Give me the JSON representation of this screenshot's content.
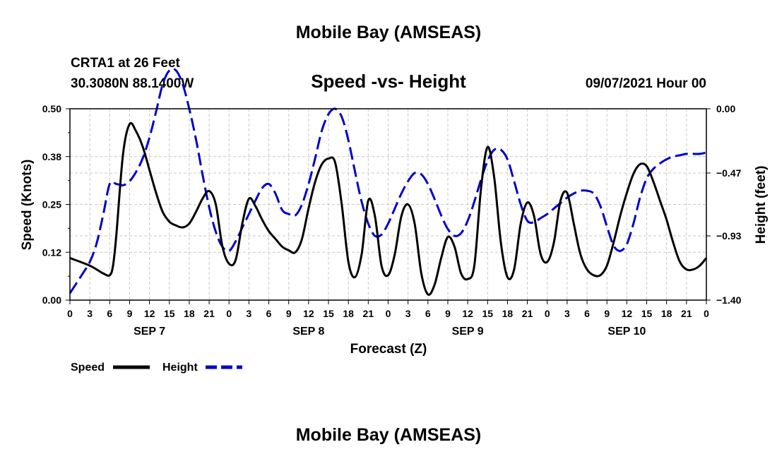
{
  "page": {
    "title_top": "Mobile Bay (AMSEAS)",
    "title_bottom": "Mobile Bay (AMSEAS)"
  },
  "header": {
    "station": "CRTA1 at 26 Feet",
    "coords": "30.3080N  88.1400W",
    "subtitle": "Speed -vs- Height",
    "datetime": "09/07/2021 Hour 00"
  },
  "chart_data": {
    "type": "line",
    "title": "Speed -vs- Height",
    "xlabel": "Forecast (Z)",
    "ylabel_left": "Speed (Knots)",
    "ylabel_right": "Height (feet)",
    "xlim": [
      0,
      96
    ],
    "ylim_left": [
      0.0,
      0.5
    ],
    "ylim_right": [
      -1.4,
      0.0
    ],
    "grid": true,
    "x_hour_labels": [
      "0",
      "3",
      "6",
      "9",
      "12",
      "15",
      "18",
      "21",
      "0",
      "3",
      "6",
      "9",
      "12",
      "15",
      "18",
      "21",
      "0",
      "3",
      "6",
      "9",
      "12",
      "15",
      "18",
      "21",
      "0",
      "3",
      "6",
      "9",
      "12",
      "15",
      "18",
      "21",
      "0"
    ],
    "day_labels": [
      {
        "label": "SEP 7",
        "hour": 12
      },
      {
        "label": "SEP 8",
        "hour": 36
      },
      {
        "label": "SEP 9",
        "hour": 60
      },
      {
        "label": "SEP 10",
        "hour": 84
      }
    ],
    "left_ticks": [
      {
        "value": 0.0,
        "label": "0.00"
      },
      {
        "value": 0.125,
        "label": "0.12"
      },
      {
        "value": 0.25,
        "label": "0.25"
      },
      {
        "value": 0.375,
        "label": "0.38"
      },
      {
        "value": 0.5,
        "label": "0.50"
      }
    ],
    "right_ticks": [
      {
        "value": 0.0,
        "label": "0.00"
      },
      {
        "value": -0.47,
        "label": "-0.47"
      },
      {
        "value": -0.93,
        "label": "-0.93"
      },
      {
        "value": -1.4,
        "label": "-1.40"
      }
    ],
    "series": [
      {
        "name": "Speed",
        "axis": "left",
        "color": "#000000",
        "style": "solid",
        "points": [
          [
            0,
            0.11
          ],
          [
            3,
            0.09
          ],
          [
            5,
            0.07
          ],
          [
            6,
            0.065
          ],
          [
            6.5,
            0.09
          ],
          [
            7,
            0.17
          ],
          [
            8,
            0.38
          ],
          [
            9,
            0.46
          ],
          [
            10,
            0.44
          ],
          [
            11,
            0.4
          ],
          [
            12,
            0.34
          ],
          [
            13,
            0.28
          ],
          [
            14,
            0.23
          ],
          [
            15,
            0.205
          ],
          [
            16,
            0.195
          ],
          [
            17,
            0.19
          ],
          [
            18,
            0.2
          ],
          [
            19,
            0.23
          ],
          [
            20,
            0.265
          ],
          [
            21,
            0.285
          ],
          [
            22,
            0.25
          ],
          [
            23,
            0.14
          ],
          [
            24,
            0.095
          ],
          [
            25,
            0.105
          ],
          [
            26,
            0.2
          ],
          [
            27,
            0.265
          ],
          [
            28,
            0.245
          ],
          [
            29,
            0.21
          ],
          [
            30,
            0.18
          ],
          [
            31,
            0.16
          ],
          [
            32,
            0.14
          ],
          [
            33,
            0.13
          ],
          [
            34,
            0.125
          ],
          [
            35,
            0.16
          ],
          [
            36,
            0.24
          ],
          [
            37,
            0.31
          ],
          [
            38,
            0.355
          ],
          [
            39,
            0.37
          ],
          [
            40,
            0.36
          ],
          [
            41,
            0.25
          ],
          [
            42,
            0.1
          ],
          [
            43,
            0.06
          ],
          [
            44,
            0.12
          ],
          [
            45,
            0.26
          ],
          [
            46,
            0.22
          ],
          [
            47,
            0.09
          ],
          [
            48,
            0.065
          ],
          [
            49,
            0.12
          ],
          [
            50,
            0.22
          ],
          [
            51,
            0.25
          ],
          [
            52,
            0.2
          ],
          [
            53,
            0.07
          ],
          [
            54,
            0.015
          ],
          [
            55,
            0.04
          ],
          [
            56,
            0.11
          ],
          [
            57,
            0.165
          ],
          [
            58,
            0.14
          ],
          [
            59,
            0.07
          ],
          [
            60,
            0.055
          ],
          [
            61,
            0.09
          ],
          [
            62,
            0.29
          ],
          [
            63,
            0.4
          ],
          [
            64,
            0.32
          ],
          [
            65,
            0.15
          ],
          [
            66,
            0.06
          ],
          [
            67,
            0.08
          ],
          [
            68,
            0.2
          ],
          [
            69,
            0.255
          ],
          [
            70,
            0.22
          ],
          [
            71,
            0.12
          ],
          [
            72,
            0.1
          ],
          [
            73,
            0.15
          ],
          [
            74,
            0.26
          ],
          [
            75,
            0.28
          ],
          [
            76,
            0.2
          ],
          [
            77,
            0.12
          ],
          [
            78,
            0.08
          ],
          [
            79,
            0.065
          ],
          [
            80,
            0.065
          ],
          [
            81,
            0.09
          ],
          [
            82,
            0.15
          ],
          [
            83,
            0.22
          ],
          [
            84,
            0.28
          ],
          [
            85,
            0.33
          ],
          [
            86,
            0.355
          ],
          [
            87,
            0.35
          ],
          [
            88,
            0.31
          ],
          [
            89,
            0.26
          ],
          [
            90,
            0.21
          ],
          [
            91,
            0.15
          ],
          [
            92,
            0.1
          ],
          [
            93,
            0.08
          ],
          [
            94,
            0.08
          ],
          [
            95,
            0.09
          ],
          [
            96,
            0.11
          ]
        ]
      },
      {
        "name": "Height",
        "axis": "right",
        "color": "#0000cc",
        "style": "dashed",
        "points": [
          [
            0,
            -1.35
          ],
          [
            2,
            -1.2
          ],
          [
            3,
            -1.12
          ],
          [
            4,
            -0.99
          ],
          [
            5,
            -0.78
          ],
          [
            6,
            -0.55
          ],
          [
            7,
            -0.55
          ],
          [
            8,
            -0.56
          ],
          [
            9,
            -0.53
          ],
          [
            10,
            -0.46
          ],
          [
            11,
            -0.36
          ],
          [
            12,
            -0.21
          ],
          [
            13,
            -0.02
          ],
          [
            14,
            0.18
          ],
          [
            15,
            0.28
          ],
          [
            16,
            0.28
          ],
          [
            17,
            0.18
          ],
          [
            18,
            0.0
          ],
          [
            19,
            -0.22
          ],
          [
            20,
            -0.48
          ],
          [
            21,
            -0.72
          ],
          [
            22,
            -0.9
          ],
          [
            23,
            -1.01
          ],
          [
            24,
            -1.04
          ],
          [
            25,
            -0.97
          ],
          [
            26,
            -0.87
          ],
          [
            27,
            -0.77
          ],
          [
            28,
            -0.67
          ],
          [
            29,
            -0.58
          ],
          [
            30,
            -0.55
          ],
          [
            31,
            -0.62
          ],
          [
            32,
            -0.74
          ],
          [
            33,
            -0.77
          ],
          [
            34,
            -0.78
          ],
          [
            35,
            -0.7
          ],
          [
            36,
            -0.55
          ],
          [
            37,
            -0.36
          ],
          [
            38,
            -0.16
          ],
          [
            39,
            -0.04
          ],
          [
            40,
            0.0
          ],
          [
            41,
            -0.06
          ],
          [
            42,
            -0.23
          ],
          [
            43,
            -0.46
          ],
          [
            44,
            -0.68
          ],
          [
            45,
            -0.84
          ],
          [
            46,
            -0.93
          ],
          [
            47,
            -0.92
          ],
          [
            48,
            -0.84
          ],
          [
            49,
            -0.73
          ],
          [
            50,
            -0.62
          ],
          [
            51,
            -0.53
          ],
          [
            52,
            -0.47
          ],
          [
            53,
            -0.48
          ],
          [
            54,
            -0.55
          ],
          [
            55,
            -0.66
          ],
          [
            56,
            -0.78
          ],
          [
            57,
            -0.88
          ],
          [
            58,
            -0.93
          ],
          [
            59,
            -0.91
          ],
          [
            60,
            -0.82
          ],
          [
            61,
            -0.68
          ],
          [
            62,
            -0.52
          ],
          [
            63,
            -0.38
          ],
          [
            64,
            -0.3
          ],
          [
            65,
            -0.3
          ],
          [
            66,
            -0.37
          ],
          [
            67,
            -0.53
          ],
          [
            68,
            -0.7
          ],
          [
            69,
            -0.82
          ],
          [
            70,
            -0.83
          ],
          [
            71,
            -0.8
          ],
          [
            72,
            -0.77
          ],
          [
            73,
            -0.73
          ],
          [
            74,
            -0.69
          ],
          [
            75,
            -0.65
          ],
          [
            76,
            -0.62
          ],
          [
            77,
            -0.6
          ],
          [
            78,
            -0.6
          ],
          [
            79,
            -0.62
          ],
          [
            80,
            -0.71
          ],
          [
            81,
            -0.86
          ],
          [
            82,
            -1.0
          ],
          [
            83,
            -1.04
          ],
          [
            84,
            -0.99
          ],
          [
            85,
            -0.84
          ],
          [
            86,
            -0.65
          ],
          [
            87,
            -0.51
          ],
          [
            88,
            -0.44
          ],
          [
            89,
            -0.4
          ],
          [
            90,
            -0.37
          ],
          [
            91,
            -0.35
          ],
          [
            92,
            -0.34
          ],
          [
            93,
            -0.33
          ],
          [
            94,
            -0.33
          ],
          [
            95,
            -0.33
          ],
          [
            96,
            -0.32
          ]
        ]
      }
    ],
    "legend": [
      {
        "name": "Speed",
        "color": "#000000",
        "style": "solid"
      },
      {
        "name": "Height",
        "color": "#0000cc",
        "style": "dashed"
      }
    ],
    "legend_placement": "bottom-left"
  }
}
